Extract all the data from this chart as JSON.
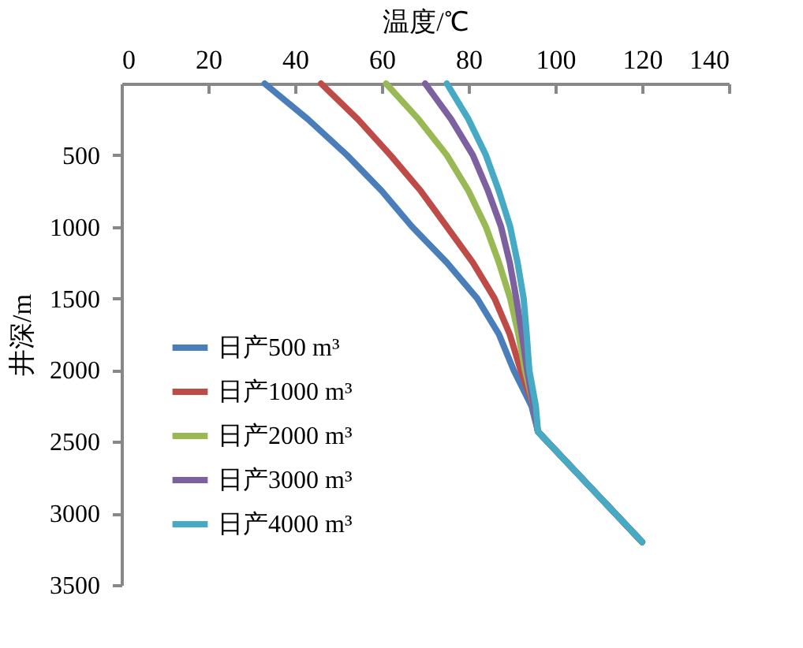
{
  "chart_data": {
    "type": "line",
    "xlabel": "温度/℃",
    "ylabel": "井深/m",
    "xlim": [
      0,
      140
    ],
    "xticks": [
      0,
      20,
      40,
      60,
      80,
      100,
      120,
      140
    ],
    "ylim": [
      3500,
      0
    ],
    "yticks": [
      500,
      1000,
      1500,
      2000,
      2500,
      3000,
      3500
    ],
    "legend": "bottom left",
    "grid": false,
    "line_style": "solid",
    "marker": "none",
    "series": [
      {
        "name": "日产500 m³",
        "color": "#4a7ebb",
        "x": [
          33,
          43,
          52,
          60,
          67,
          75,
          82,
          87,
          90.4,
          94.5,
          96,
          120
        ],
        "values": [
          0,
          250,
          500,
          750,
          1000,
          1250,
          1500,
          1750,
          2000,
          2250,
          2430,
          3200
        ]
      },
      {
        "name": "日产1000 m³",
        "color": "#be4b48",
        "x": [
          46,
          54.5,
          62,
          69,
          75,
          81,
          86,
          89.5,
          92,
          95,
          96,
          120
        ],
        "values": [
          0,
          250,
          500,
          750,
          1000,
          1250,
          1500,
          1750,
          2000,
          2250,
          2430,
          3200
        ]
      },
      {
        "name": "日产2000 m³",
        "color": "#98b954",
        "x": [
          61,
          68.5,
          75,
          80,
          84,
          87,
          89.6,
          91.5,
          93,
          95,
          96,
          120
        ],
        "values": [
          0,
          250,
          500,
          750,
          1000,
          1250,
          1500,
          1750,
          2000,
          2250,
          2430,
          3200
        ]
      },
      {
        "name": "日产3000 m³",
        "color": "#7d60a0",
        "x": [
          70,
          76,
          81,
          84.5,
          87.5,
          89.5,
          91,
          92.3,
          93.5,
          95,
          96,
          120
        ],
        "values": [
          0,
          250,
          500,
          750,
          1000,
          1250,
          1500,
          1750,
          2000,
          2250,
          2430,
          3200
        ]
      },
      {
        "name": "日产4000 m³",
        "color": "#46aac5",
        "x": [
          75,
          80,
          84,
          87,
          89.6,
          91.3,
          92.7,
          93.4,
          94,
          95.5,
          96,
          120
        ],
        "values": [
          0,
          250,
          500,
          750,
          1000,
          1250,
          1500,
          1750,
          2000,
          2250,
          2430,
          3200
        ]
      }
    ]
  }
}
